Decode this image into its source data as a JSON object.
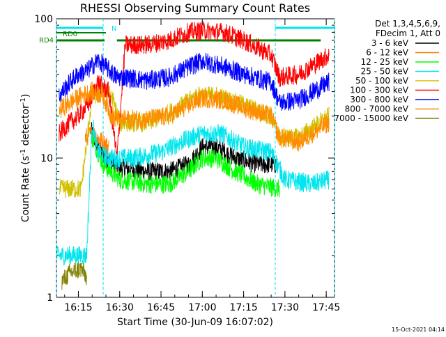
{
  "chart_data": {
    "type": "line",
    "title": "RHESSI Observing Summary Count Rates",
    "xlabel": "Start Time (30-Jun-09 16:07:02)",
    "ylabel": "Count Rate (s⁻¹ detector⁻¹)",
    "ylabel_main": "Count Rate (s",
    "ylabel_sup1": "-1",
    "ylabel_mid": " detector",
    "ylabel_sup2": "-1",
    "ylabel_end": ")",
    "footer": "15-Oct-2021 04:14",
    "y_scale": "log",
    "ylim": [
      1,
      100
    ],
    "xlim": [
      "16:07:02",
      "17:48:00"
    ],
    "x_tick_labels": [
      "16:15",
      "16:30",
      "16:45",
      "17:00",
      "17:15",
      "17:30",
      "17:45"
    ],
    "x_tick_values": [
      "16:15:00",
      "16:30:00",
      "16:45:00",
      "17:00:00",
      "17:15:00",
      "17:30:00",
      "17:45:00"
    ],
    "y_tick_labels": [
      "1",
      "10",
      "100"
    ],
    "y_tick_values": [
      1,
      10,
      100
    ],
    "legend_position": "right",
    "legend_header": [
      "Det 1,3,4,5,6,9,",
      "FDecim 1, Att 0"
    ],
    "flags": {
      "rd0_label": "RD0",
      "rd4_label": "RD4",
      "n_label": "N",
      "night_intervals": [
        [
          "16:07:02",
          "16:24:00"
        ],
        [
          "17:26:30",
          "17:48:00"
        ]
      ],
      "saa_start": [
        "16:07:02",
        "16:25:00"
      ],
      "rd4_intervals": [
        [
          "16:07:02",
          "16:24:30"
        ],
        [
          "16:29:00",
          "17:43:00"
        ]
      ]
    },
    "series": [
      {
        "name": "3 - 6 keV",
        "color": "#000000",
        "t": [
          "16:19:30",
          "16:22:00",
          "16:25:00",
          "16:30:00",
          "16:40:00",
          "16:48:00",
          "16:55:00",
          "17:00:00",
          "17:05:00",
          "17:12:00",
          "17:20:00",
          "17:27:00"
        ],
        "values": [
          16,
          12,
          10,
          8.5,
          8,
          8,
          9,
          12,
          12,
          10,
          9,
          9
        ]
      },
      {
        "name": "6 - 12 keV",
        "color": "#ff7f00",
        "t": [
          "16:17:30",
          "16:20:00",
          "16:22:00",
          "16:26:00"
        ],
        "values": [
          14,
          15,
          14,
          12
        ]
      },
      {
        "name": "12 - 25 keV",
        "color": "#00ff00",
        "t": [
          "16:20:00",
          "16:24:00",
          "16:30:00",
          "16:40:00",
          "16:48:00",
          "16:55:00",
          "17:00:00",
          "17:05:00",
          "17:12:00",
          "17:20:00",
          "17:28:00"
        ],
        "values": [
          14,
          9,
          7,
          6.5,
          6.5,
          8,
          10,
          10,
          8,
          6.5,
          6
        ]
      },
      {
        "name": "25 - 50 keV",
        "color": "#00e5ee",
        "t": [
          "16:07:02",
          "16:10:00",
          "16:14:00",
          "16:18:00",
          "16:20:00",
          "16:22:00",
          "16:26:00",
          "16:35:00",
          "16:45:00",
          "16:52:00",
          "17:00:00",
          "17:07:00",
          "17:15:00",
          "17:25:00",
          "17:30:00",
          "17:40:00",
          "17:46:00"
        ],
        "values": [
          2,
          2,
          2,
          2,
          18,
          11,
          10,
          10,
          11,
          13,
          15,
          15,
          12,
          11,
          7,
          6.5,
          7
        ]
      },
      {
        "name": "50 - 100 keV",
        "color": "#d0c000",
        "t": [
          "16:08:00",
          "16:10:00",
          "16:14:00",
          "16:16:00",
          "16:20:00",
          "16:24:00",
          "16:27:00",
          "16:30:00",
          "16:40:00",
          "16:50:00",
          "16:58:00",
          "17:05:00",
          "17:15:00",
          "17:25:00",
          "17:28:00",
          "17:35:00",
          "17:46:00"
        ],
        "values": [
          6,
          6,
          6,
          6,
          28,
          30,
          28,
          18,
          18,
          22,
          28,
          28,
          24,
          20,
          14,
          14,
          20
        ]
      },
      {
        "name": "100 - 300 keV",
        "color": "#ff0000",
        "t": [
          "16:08:00",
          "16:12:00",
          "16:15:00",
          "16:19:00",
          "16:22:00",
          "16:26:00",
          "16:29:00",
          "16:32:00",
          "16:40:00",
          "16:48:00",
          "16:55:00",
          "17:00:00",
          "17:08:00",
          "17:15:00",
          "17:25:00",
          "17:28:00",
          "17:35:00",
          "17:46:00"
        ],
        "values": [
          15,
          18,
          20,
          25,
          35,
          30,
          10,
          65,
          65,
          70,
          80,
          82,
          80,
          70,
          55,
          38,
          40,
          55
        ]
      },
      {
        "name": "300 - 800 keV",
        "color": "#0000ff",
        "t": [
          "16:08:00",
          "16:12:00",
          "16:15:00",
          "16:18:00",
          "16:22:00",
          "16:25:00",
          "16:29:00",
          "16:32:00",
          "16:40:00",
          "16:48:00",
          "16:55:00",
          "17:00:00",
          "17:08:00",
          "17:15:00",
          "17:25:00",
          "17:28:00",
          "17:35:00",
          "17:46:00"
        ],
        "values": [
          28,
          35,
          40,
          42,
          50,
          45,
          38,
          38,
          36,
          38,
          45,
          50,
          45,
          40,
          35,
          25,
          26,
          35
        ]
      },
      {
        "name": "800 - 7000 keV",
        "color": "#ff8c00",
        "t": [
          "16:08:00",
          "16:12:00",
          "16:16:00",
          "16:20:00",
          "16:24:00",
          "16:27:00",
          "16:30:00",
          "16:40:00",
          "16:48:00",
          "16:55:00",
          "17:00:00",
          "17:08:00",
          "17:15:00",
          "17:25:00",
          "17:28:00",
          "17:35:00",
          "17:46:00"
        ],
        "values": [
          22,
          25,
          28,
          30,
          28,
          20,
          19,
          19,
          20,
          24,
          27,
          26,
          23,
          20,
          14,
          13,
          18
        ]
      },
      {
        "name": "7000 - 15000 keV",
        "color": "#808000",
        "t": [
          "16:09:00",
          "16:12:00",
          "16:16:00",
          "16:18:00"
        ],
        "values": [
          1.3,
          1.5,
          1.6,
          1.4
        ]
      }
    ]
  }
}
